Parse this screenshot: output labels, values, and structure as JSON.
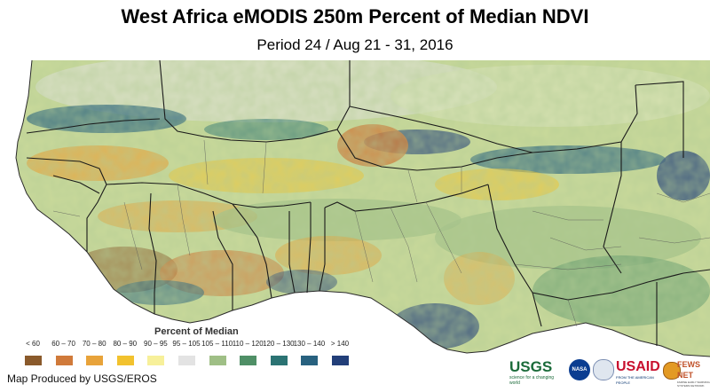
{
  "header": {
    "title": "West Africa eMODIS 250m Percent of Median NDVI",
    "subtitle": "Period 24 / Aug 21 - 31, 2016"
  },
  "legend": {
    "title": "Percent of Median",
    "classes": [
      {
        "label": "< 60",
        "color": "#8a5a2b"
      },
      {
        "label": "60 – 70",
        "color": "#d07a3a"
      },
      {
        "label": "70 – 80",
        "color": "#e8a33a"
      },
      {
        "label": "80 – 90",
        "color": "#f2c22e"
      },
      {
        "label": "90 – 95",
        "color": "#f7f09a"
      },
      {
        "label": "95 – 105",
        "color": "#e3e3e3"
      },
      {
        "label": "105 – 110",
        "color": "#9fbf86"
      },
      {
        "label": "110 – 120",
        "color": "#4f8f66"
      },
      {
        "label": "120 – 130",
        "color": "#2b7373"
      },
      {
        "label": "130 – 140",
        "color": "#28617f"
      },
      {
        "label": "> 140",
        "color": "#223f79"
      }
    ]
  },
  "credit": "Map Produced by USGS/EROS",
  "logos": {
    "usgs": "USGS",
    "usgs_tagline": "science for a changing world",
    "nasa": "NASA",
    "usaid": "USAID",
    "usaid_tagline": "FROM THE AMERICAN PEOPLE",
    "fewsnet": "FEWS NET",
    "fewsnet_tagline": "FAMINE EARLY WARNING SYSTEMS NETWORK"
  },
  "map_colors": {
    "ocean": "#ffffff",
    "land_base": "#c9d99a",
    "border": "#2a2a2a"
  }
}
